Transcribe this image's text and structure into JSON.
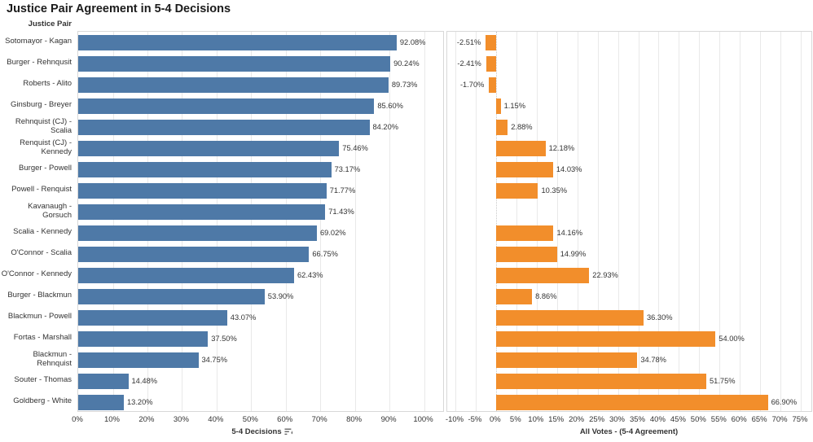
{
  "title": "Justice Pair Agreement in 5-4 Decisions",
  "row_header": "Justice Pair",
  "colors": {
    "left_bar": "#4e79a7",
    "right_bar": "#f28e2b",
    "grid": "#e9e9e9",
    "border": "#d8d8d8",
    "text": "#333333"
  },
  "chart_data": {
    "type": "bar",
    "orientation": "horizontal",
    "categories": [
      "Sotomayor - Kagan",
      "Burger - Rehnqusit",
      "Roberts - Alito",
      "Ginsburg - Breyer",
      "Rehnquist (CJ) - Scalia",
      "Renquist (CJ) - Kennedy",
      "Burger - Powell",
      "Powell - Renquist",
      "Kavanaugh - Gorsuch",
      "Scalia - Kennedy",
      "O'Connor - Scalia",
      "O'Connor - Kennedy",
      "Burger - Blackmun",
      "Blackmun - Powell",
      "Fortas - Marshall",
      "Blackmun - Rehnquist",
      "Souter - Thomas",
      "Goldberg - White"
    ],
    "series": [
      {
        "name": "5-4 Decisions",
        "color": "#4e79a7",
        "values": [
          92.08,
          90.24,
          89.73,
          85.6,
          84.2,
          75.46,
          73.17,
          71.77,
          71.43,
          69.02,
          66.75,
          62.43,
          53.9,
          43.07,
          37.5,
          34.75,
          14.48,
          13.2
        ],
        "value_labels": [
          "92.08%",
          "90.24%",
          "89.73%",
          "85.60%",
          "84.20%",
          "75.46%",
          "73.17%",
          "71.77%",
          "71.43%",
          "69.02%",
          "66.75%",
          "62.43%",
          "53.90%",
          "43.07%",
          "37.50%",
          "34.75%",
          "14.48%",
          "13.20%"
        ]
      },
      {
        "name": "All Votes - (5-4 Agreement)",
        "color": "#f28e2b",
        "values": [
          -2.51,
          -2.41,
          -1.7,
          1.15,
          2.88,
          12.18,
          14.03,
          10.35,
          null,
          14.16,
          14.99,
          22.93,
          8.86,
          36.3,
          54.0,
          34.78,
          51.75,
          66.9
        ],
        "value_labels": [
          "-2.51%",
          "-2.41%",
          "-1.70%",
          "1.15%",
          "2.88%",
          "12.18%",
          "14.03%",
          "10.35%",
          "",
          "14.16%",
          "14.99%",
          "22.93%",
          "8.86%",
          "36.30%",
          "54.00%",
          "34.78%",
          "51.75%",
          "66.90%"
        ]
      }
    ],
    "left_axis": {
      "title": "5-4 Decisions",
      "tick_values": [
        0,
        10,
        20,
        30,
        40,
        50,
        60,
        70,
        80,
        90,
        100
      ],
      "tick_labels": [
        "0%",
        "10%",
        "20%",
        "30%",
        "40%",
        "50%",
        "60%",
        "70%",
        "80%",
        "90%",
        "100%"
      ],
      "range": [
        0,
        106
      ],
      "sorted_descending": true
    },
    "right_axis": {
      "title": "All Votes - (5-4 Agreement)",
      "tick_values": [
        -10,
        -5,
        0,
        5,
        10,
        15,
        20,
        25,
        30,
        35,
        40,
        45,
        50,
        55,
        60,
        65,
        70,
        75
      ],
      "tick_labels": [
        "-10%",
        "-5%",
        "0%",
        "5%",
        "10%",
        "15%",
        "20%",
        "25%",
        "30%",
        "35%",
        "40%",
        "45%",
        "50%",
        "55%",
        "60%",
        "65%",
        "70%",
        "75%"
      ],
      "range": [
        -12,
        78
      ]
    }
  }
}
